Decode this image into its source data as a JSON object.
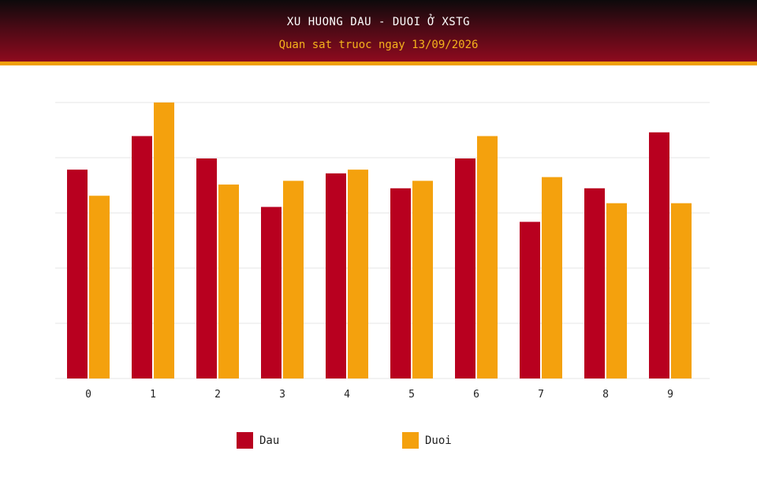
{
  "header": {
    "title": "XU HUONG DAU - DUOI Ở XSTG",
    "subtitle": "Quan sat truoc ngay 13/09/2026"
  },
  "colors": {
    "dau": "#b8001f",
    "duoi": "#f4a10d",
    "grid": "#e6e6e6"
  },
  "chart_data": {
    "type": "bar",
    "title": "XU HUONG DAU - DUOI Ở XSTG",
    "subtitle": "Quan sat truoc ngay 13/09/2026",
    "categories": [
      "0",
      "1",
      "2",
      "3",
      "4",
      "5",
      "6",
      "7",
      "8",
      "9"
    ],
    "series": [
      {
        "name": "Dau",
        "values": [
          56,
          65,
          59,
          46,
          55,
          51,
          59,
          42,
          51,
          66
        ]
      },
      {
        "name": "Duoi",
        "values": [
          49,
          74,
          52,
          53,
          56,
          53,
          65,
          54,
          47,
          47
        ]
      }
    ],
    "ylim": [
      0,
      74
    ],
    "grid": true,
    "y_tick_labels_shown": false,
    "legend_position": "bottom"
  }
}
